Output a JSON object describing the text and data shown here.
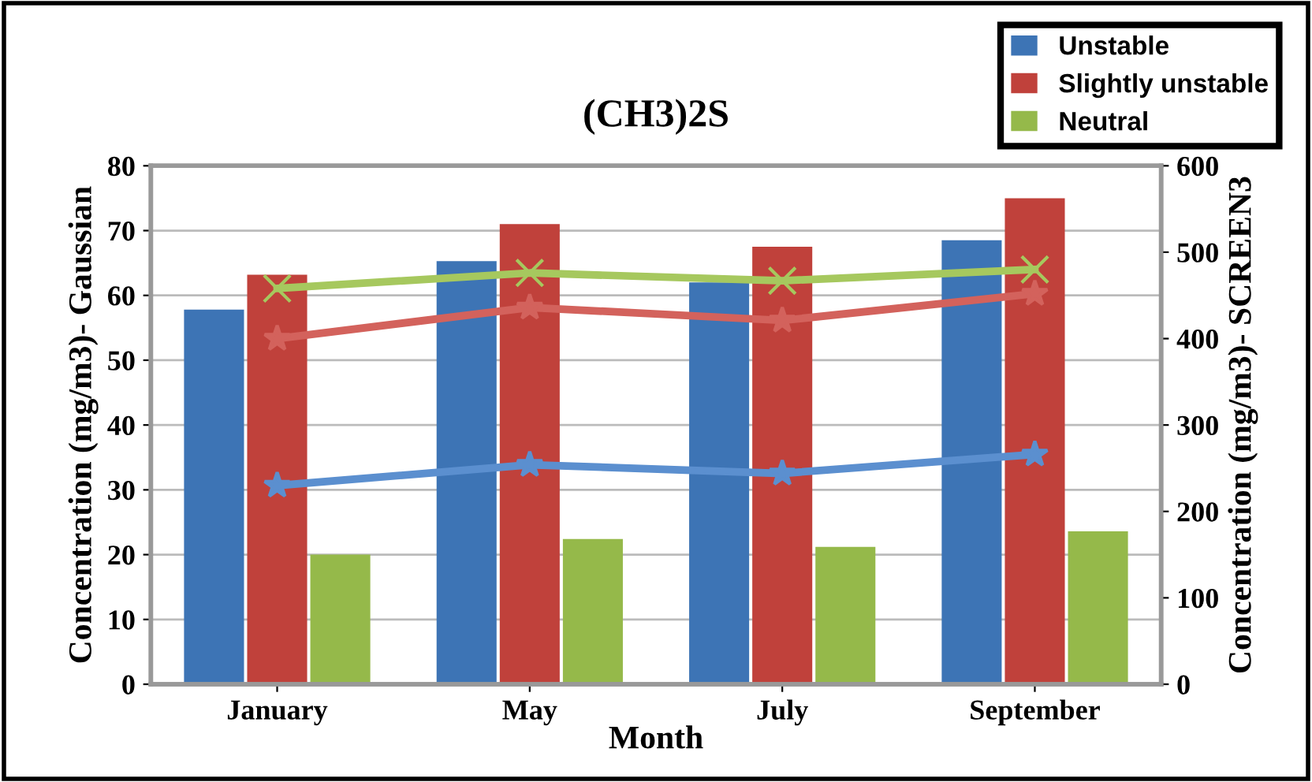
{
  "chart_data": {
    "type": "bar",
    "title": "(CH3)2S",
    "xlabel": "Month",
    "ylabel": "Concentration (mg/m3)- Gaussian",
    "y2label": "Concentration (mg/m3)- SCREEN3",
    "categories": [
      "January",
      "May",
      "July",
      "September"
    ],
    "series": [
      {
        "name": "Unstable",
        "color": "#3d74b5",
        "values": [
          57.8,
          65.3,
          62,
          68.5
        ]
      },
      {
        "name": "Slightly unstable",
        "color": "#c0413b",
        "values": [
          63.2,
          71,
          67.5,
          75
        ]
      },
      {
        "name": "Neutral",
        "color": "#95b94a",
        "values": [
          20,
          22.4,
          21.2,
          23.6
        ]
      },
      {
        "type": "line",
        "axis": "y2",
        "color": "#5b8fcf",
        "marker": "star",
        "values": [
          230,
          254,
          244,
          266
        ]
      },
      {
        "type": "line",
        "axis": "y2",
        "color": "#d3625c",
        "marker": "star",
        "values": [
          400,
          436,
          421,
          452
        ]
      },
      {
        "type": "line",
        "axis": "y2",
        "color": "#a6c85e",
        "marker": "cross",
        "values": [
          458,
          476,
          467,
          480
        ]
      }
    ],
    "ylim": [
      0,
      80
    ],
    "yticks": [
      0,
      10,
      20,
      30,
      40,
      50,
      60,
      70,
      80
    ],
    "y2lim": [
      0,
      600
    ],
    "y2ticks": [
      0,
      100,
      200,
      300,
      400,
      500,
      600
    ],
    "grid": "y",
    "legend": "top right"
  }
}
